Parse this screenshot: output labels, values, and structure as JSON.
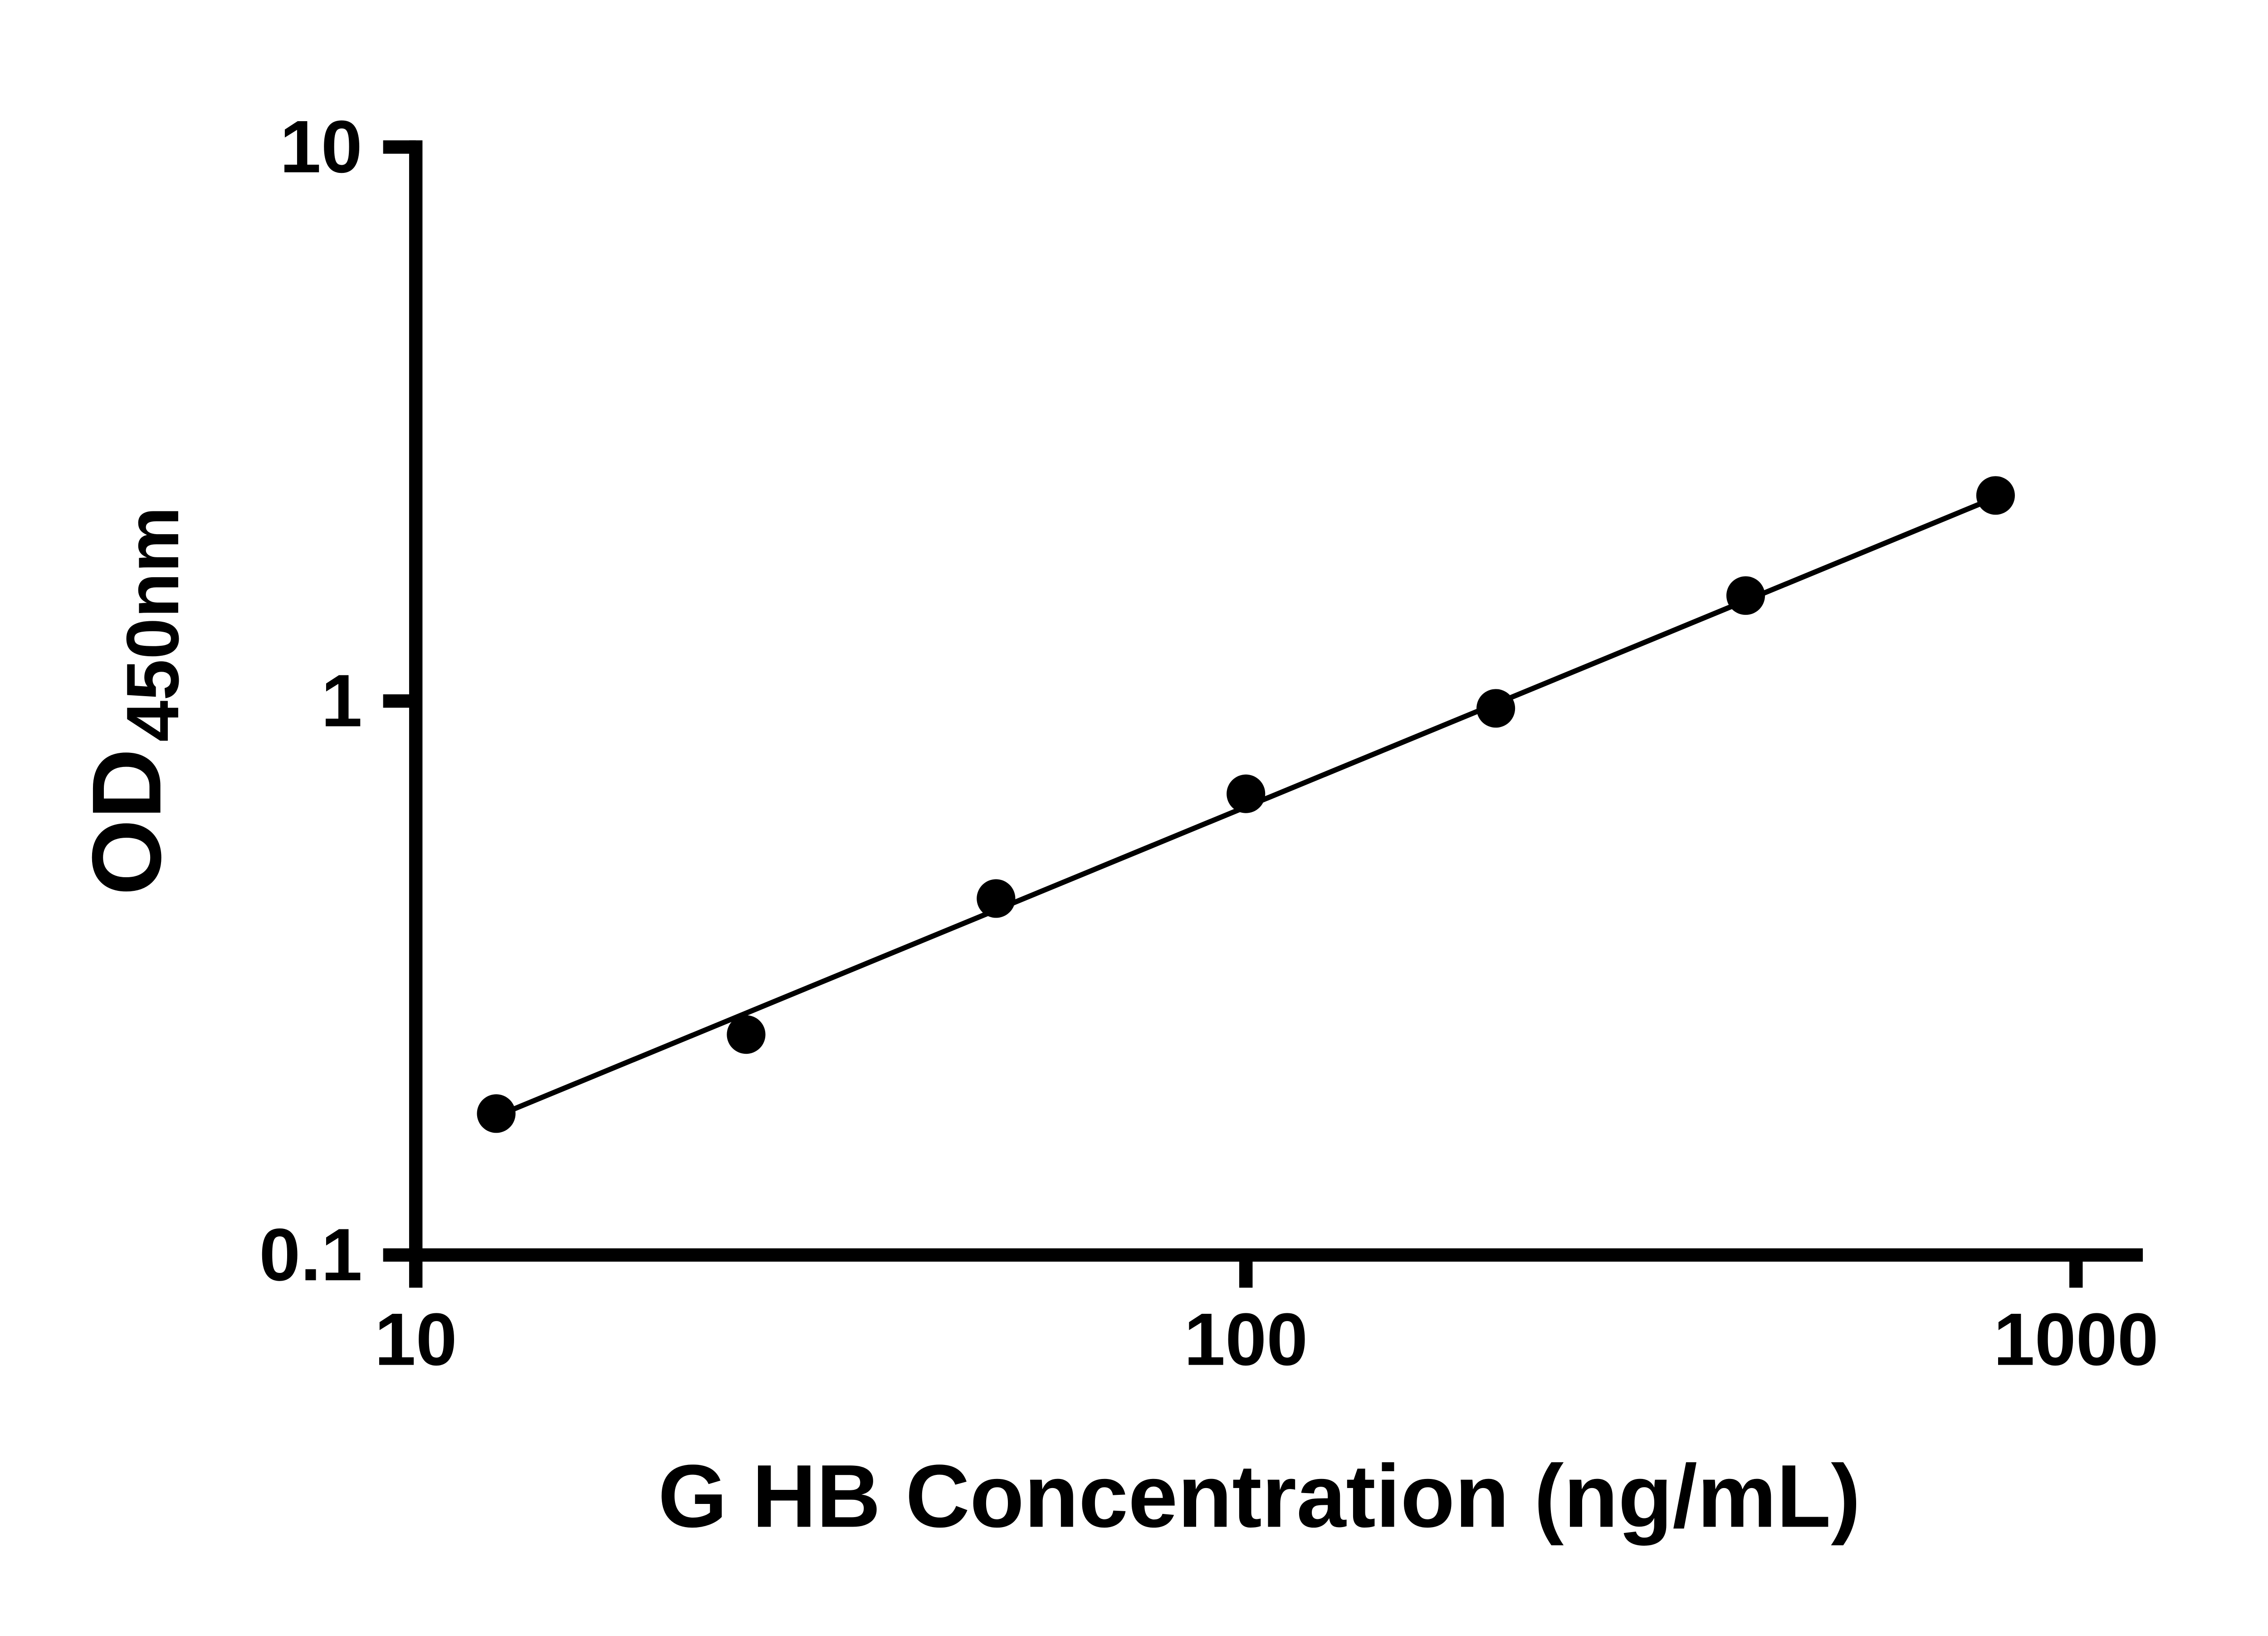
{
  "chart_data": {
    "type": "scatter",
    "title": "",
    "xlabel": "G HB Concentration (ng/mL)",
    "ylabel_main": "OD",
    "ylabel_sub": "450nm",
    "x_scale": "log",
    "y_scale": "log",
    "xlim": [
      10,
      1000
    ],
    "ylim": [
      0.1,
      10
    ],
    "grid": false,
    "legend": false,
    "marker_color": "#000000",
    "line_color": "#000000",
    "axis_color": "#000000",
    "x": [
      12.5,
      25,
      50,
      100,
      200,
      400,
      800
    ],
    "y": [
      0.18,
      0.25,
      0.44,
      0.68,
      0.97,
      1.55,
      2.35
    ],
    "x_ticks": [
      {
        "value": 10,
        "label": "10"
      },
      {
        "value": 100,
        "label": "100"
      },
      {
        "value": 1000,
        "label": "1000"
      }
    ],
    "y_ticks": [
      {
        "value": 0.1,
        "label": "0.1"
      },
      {
        "value": 1,
        "label": "1"
      },
      {
        "value": 10,
        "label": "10"
      }
    ],
    "trend_line": {
      "x_start": 12.5,
      "y_start": 0.178,
      "x_end": 800,
      "y_end": 2.33
    }
  }
}
